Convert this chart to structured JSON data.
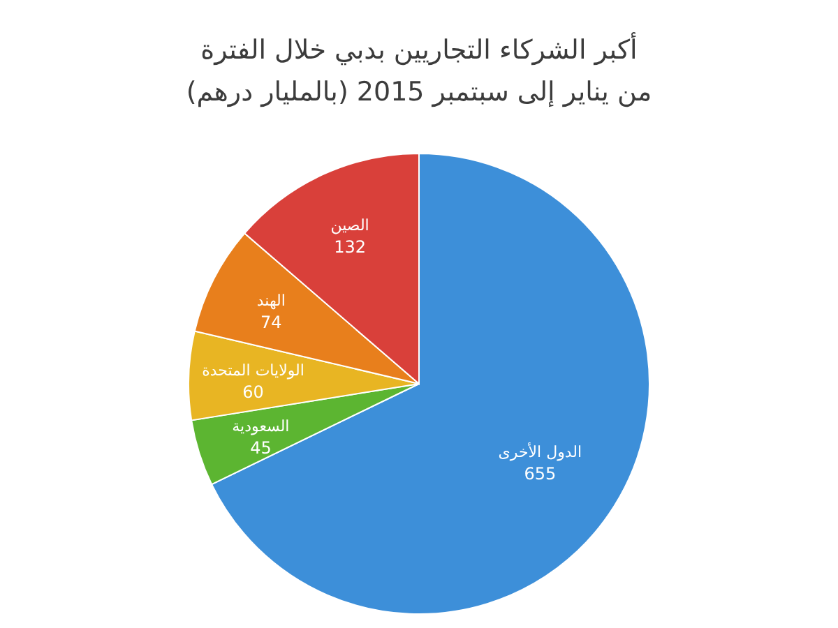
{
  "chart_data": {
    "type": "pie",
    "title": "أكبر الشركاء التجاريين بدبي خلال الفترة",
    "subtitle": "من يناير إلى سبتمبر 2015 (بالمليار درهم)",
    "categories": [
      "الدول الأخرى",
      "السعودية",
      "الولايات المتحدة",
      "الهند",
      "الصين"
    ],
    "values": [
      655,
      45,
      60,
      74,
      132
    ],
    "colors": [
      "#3d8fd9",
      "#5cb531",
      "#e8b523",
      "#e87f1c",
      "#d9403a"
    ],
    "data_labels": true
  }
}
